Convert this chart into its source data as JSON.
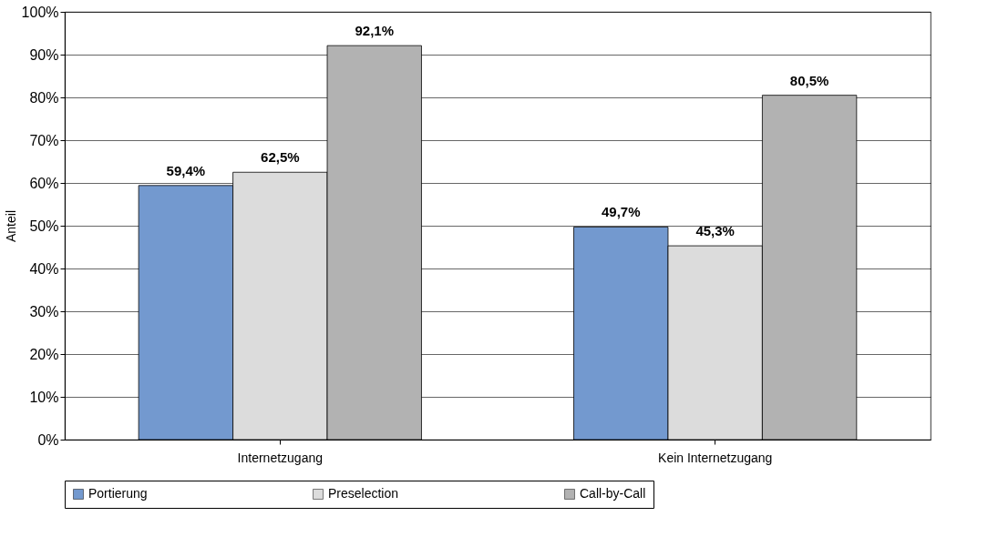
{
  "chart_data": {
    "type": "bar",
    "ylabel": "Anteil",
    "categories": [
      "Internetzugang",
      "Kein Internetzugang"
    ],
    "series": [
      {
        "name": "Portierung",
        "color": "#7399cf",
        "values": [
          59.4,
          49.7
        ],
        "value_labels": [
          "59,4%",
          "49,7%"
        ]
      },
      {
        "name": "Preselection",
        "color": "#dcdcdc",
        "values": [
          62.5,
          45.3
        ],
        "value_labels": [
          "62,5%",
          "45,3%"
        ]
      },
      {
        "name": "Call-by-Call",
        "color": "#b2b2b2",
        "values": [
          92.1,
          80.5
        ],
        "value_labels": [
          "92,1%",
          "80,5%"
        ]
      }
    ],
    "ylim": [
      0,
      100
    ],
    "yticks": [
      {
        "value": 0,
        "label": "0%"
      },
      {
        "value": 10,
        "label": "10%"
      },
      {
        "value": 20,
        "label": "20%"
      },
      {
        "value": 30,
        "label": "30%"
      },
      {
        "value": 40,
        "label": "40%"
      },
      {
        "value": 50,
        "label": "50%"
      },
      {
        "value": 60,
        "label": "60%"
      },
      {
        "value": 70,
        "label": "70%"
      },
      {
        "value": 80,
        "label": "80%"
      },
      {
        "value": 90,
        "label": "90%"
      },
      {
        "value": 100,
        "label": "100%"
      }
    ],
    "grid": "y",
    "legend": "bottom"
  }
}
